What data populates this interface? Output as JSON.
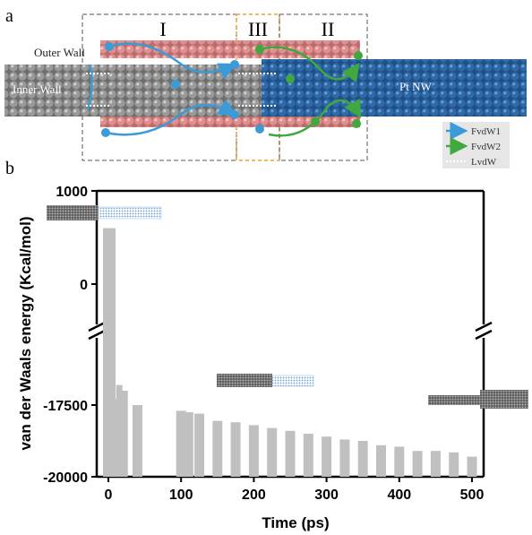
{
  "panel_a": {
    "label": "a",
    "outer_wall_label": "Outer Wall",
    "inner_wall_label": "Inner Wall",
    "nw_label": "Pt NW",
    "region_labels": [
      "I",
      "III",
      "II"
    ],
    "legend": {
      "items": [
        {
          "label": "FvdW1",
          "color": "#3a9bd8",
          "icon": "solid-arrow-icon"
        },
        {
          "label": "FvdW2",
          "color": "#3fa83f",
          "icon": "solid-arrow-icon"
        },
        {
          "label": "LvdW",
          "color": "#ffffff",
          "icon": "dotted-double-arrow-icon"
        }
      ]
    },
    "colors": {
      "outer_wall": "#e08e8e",
      "inner_wall": "#8a8a8a",
      "nanowire": "#2f6aa8",
      "region_box": "#555555",
      "region_iii_box": "#f0a030"
    }
  },
  "panel_b": {
    "label": "b"
  },
  "chart_data": {
    "type": "bar",
    "xlabel": "Time (ps)",
    "ylabel": "van der Waals energy (Kcal/mol)",
    "x_ticks": [
      "0",
      "100",
      "200",
      "300",
      "400",
      "500"
    ],
    "y_ticks": [
      "1000",
      "0",
      "-17500",
      "-20000"
    ],
    "x_range": [
      -10,
      510
    ],
    "y_axis_break": {
      "between": [
        -16000,
        0
      ]
    },
    "ylim": [
      -20000,
      1000
    ],
    "bar_color": "#c0c0c0",
    "x": [
      0,
      10,
      15,
      20,
      40,
      80,
      100,
      110,
      125,
      150,
      175,
      200,
      225,
      250,
      275,
      300,
      325,
      350,
      375,
      400,
      425,
      450,
      475,
      500
    ],
    "values": [
      600,
      -17300,
      -16800,
      -17000,
      -17500,
      -20000,
      -17700,
      -17750,
      -17800,
      -18050,
      -18100,
      -18200,
      -18300,
      -18400,
      -18500,
      -18600,
      -18700,
      -18750,
      -18900,
      -18950,
      -19100,
      -19100,
      -19150,
      -19300
    ],
    "insets": [
      {
        "at": "start",
        "description_icon": "nanowire-partially-outside-icon"
      },
      {
        "at": "middle",
        "description_icon": "nanowire-entering-tube-icon"
      },
      {
        "at": "end",
        "description_icon": "nanowire-encapsulated-icon"
      }
    ]
  }
}
